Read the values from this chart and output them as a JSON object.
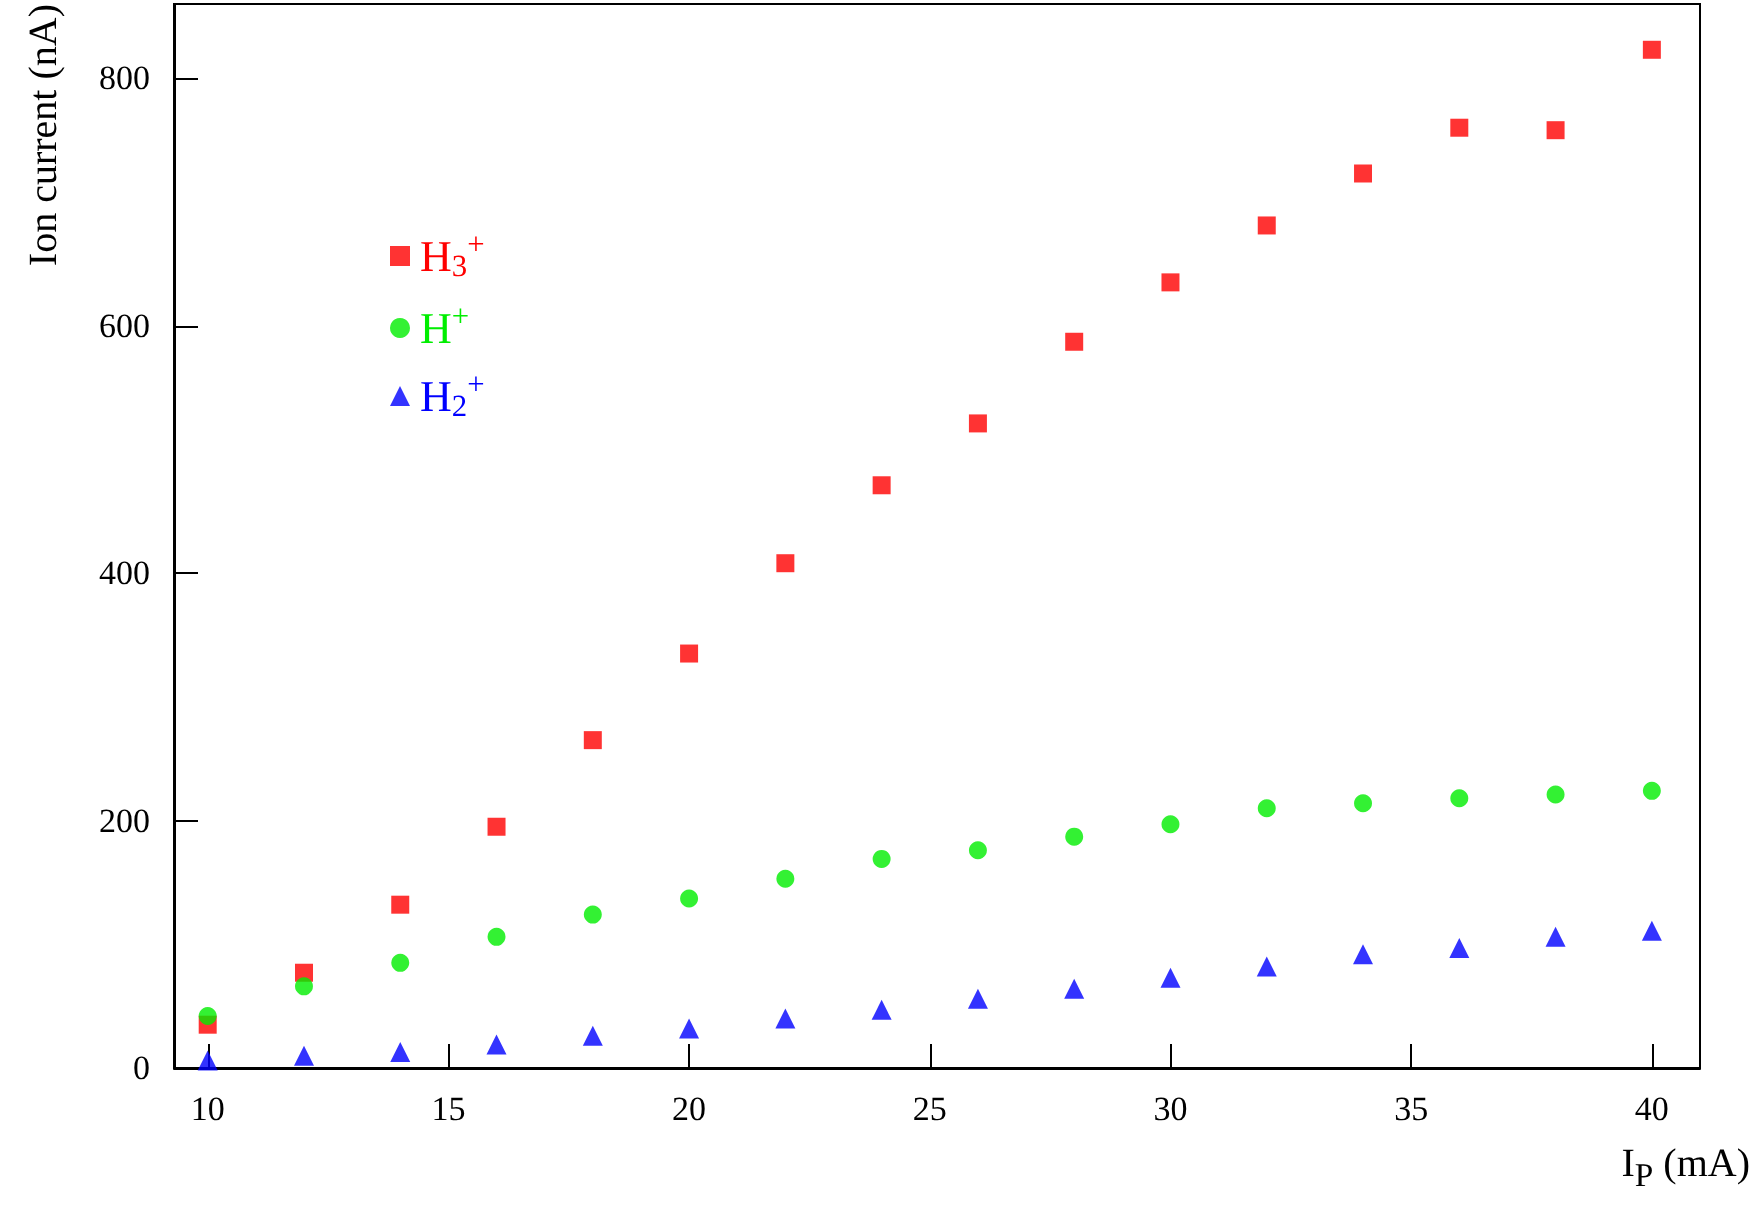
{
  "chart_data": {
    "type": "scatter",
    "xlabel": "I$_{P}$ (mA)",
    "ylabel": "Ion current (nA)",
    "x": [
      10,
      12,
      14,
      16,
      18,
      20,
      22,
      24,
      26,
      28,
      30,
      32,
      34,
      36,
      38,
      40
    ],
    "series": [
      {
        "name": "H$_{3}$$^{+}$",
        "color": "#ff0000",
        "marker": "square",
        "values": [
          35,
          77,
          132,
          195,
          265,
          335,
          408,
          471,
          521,
          587,
          635,
          681,
          723,
          760,
          758,
          823
        ]
      },
      {
        "name": "H$^{+}$",
        "color": "#00ee00",
        "marker": "circle",
        "values": [
          42,
          66,
          85,
          106,
          124,
          137,
          153,
          169,
          176,
          187,
          197,
          210,
          214,
          218,
          221,
          224
        ]
      },
      {
        "name": "H$_{2}$$^{+}$",
        "color": "#0000ff",
        "marker": "triangle",
        "values": [
          6,
          10,
          13,
          19,
          26,
          32,
          40,
          47,
          56,
          64,
          73,
          82,
          92,
          97,
          106,
          111
        ]
      }
    ],
    "xlim": [
      9.3,
      41
    ],
    "xticks": [
      10,
      15,
      20,
      25,
      30,
      35,
      40
    ],
    "ylim": [
      0,
      860
    ],
    "yticks": [
      0,
      200,
      400,
      600,
      800
    ],
    "grid": false,
    "legend": "top left"
  }
}
